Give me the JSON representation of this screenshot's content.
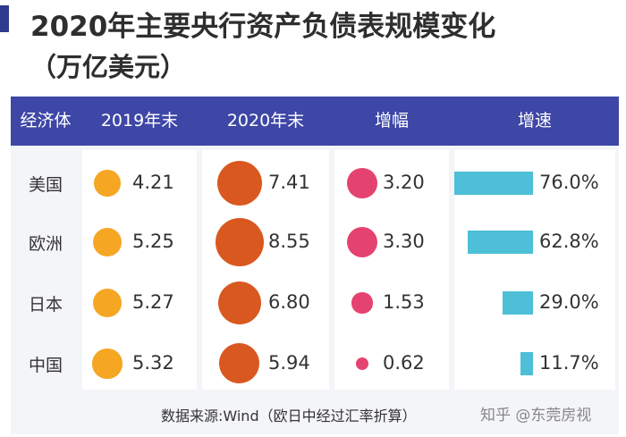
{
  "title_line1": "2020年主要央行资产负债表规模变化",
  "title_line2": "（万亿美元）",
  "headers": [
    "经济体",
    "2019年末",
    "2020年末",
    "增幅",
    "增速"
  ],
  "rows": [
    {
      "name": "美国",
      "y2019": "4.21",
      "y2020": "7.41",
      "increase": "3.20",
      "growth": "76.0%"
    },
    {
      "name": "欧洲",
      "y2019": "5.25",
      "y2020": "8.55",
      "increase": "3.30",
      "growth": "62.8%"
    },
    {
      "name": "日本",
      "y2019": "5.27",
      "y2020": "6.80",
      "increase": "1.53",
      "growth": "29.0%"
    },
    {
      "name": "中国",
      "y2019": "5.32",
      "y2020": "5.94",
      "increase": "0.62",
      "growth": "11.7%"
    }
  ],
  "source": "数据来源:Wind（欧日中经过汇率折算）",
  "watermark": "知乎 @东莞房视",
  "colors": {
    "header": "#3e47a6",
    "c2019": "#f5a623",
    "c2020": "#d9581f",
    "cincrease": "#e5436f",
    "bar": "#4dbfd6"
  },
  "chart_data": {
    "type": "table",
    "title": "2020年主要央行资产负债表规模变化",
    "unit": "（万亿美元）",
    "categories": [
      "美国",
      "欧洲",
      "日本",
      "中国"
    ],
    "series": [
      {
        "name": "2019年末",
        "values": [
          4.21,
          5.25,
          5.27,
          5.32
        ]
      },
      {
        "name": "2020年末",
        "values": [
          7.41,
          8.55,
          6.8,
          5.94
        ]
      },
      {
        "name": "增幅",
        "values": [
          3.2,
          3.3,
          1.53,
          0.62
        ]
      },
      {
        "name": "增速",
        "values": [
          76.0,
          62.8,
          29.0,
          11.7
        ]
      }
    ]
  }
}
